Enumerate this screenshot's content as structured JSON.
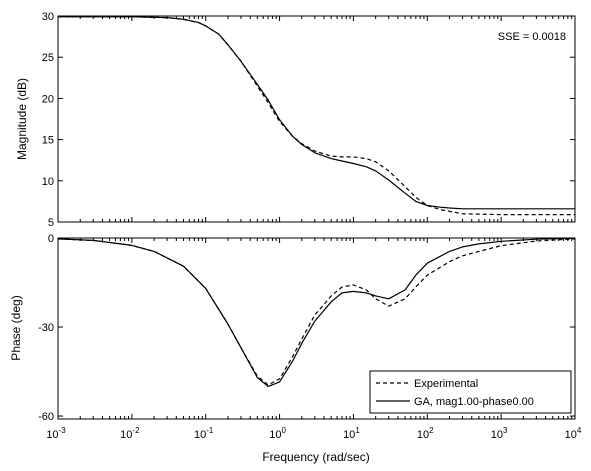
{
  "chart_data": [
    {
      "type": "line",
      "panel": "magnitude",
      "ylabel": "Magnitude (dB)",
      "xscale": "log",
      "xlim": [
        0.001,
        10000
      ],
      "ylim": [
        5,
        30
      ],
      "yticks": [
        5,
        10,
        15,
        20,
        25,
        30
      ],
      "annotation": "SSE = 0.0018",
      "series": [
        {
          "name": "Experimental",
          "style": "dashed",
          "x": [
            0.001,
            0.01,
            0.03,
            0.05,
            0.08,
            0.1,
            0.15,
            0.2,
            0.3,
            0.5,
            0.7,
            1,
            1.5,
            2,
            3,
            5,
            7,
            10,
            15,
            20,
            30,
            50,
            70,
            100,
            150,
            200,
            300,
            1000,
            10000
          ],
          "values": [
            29.9,
            29.9,
            29.8,
            29.6,
            29.2,
            28.8,
            27.8,
            26.5,
            24.5,
            21.5,
            19.5,
            17.2,
            15.4,
            14.5,
            13.6,
            13.0,
            12.9,
            12.9,
            12.7,
            12.3,
            11.2,
            9.3,
            8.0,
            7.0,
            6.5,
            6.3,
            6.0,
            5.9,
            5.9
          ]
        },
        {
          "name": "GA, mag1.00-phase0.00",
          "style": "solid",
          "x": [
            0.001,
            0.01,
            0.03,
            0.05,
            0.08,
            0.1,
            0.15,
            0.2,
            0.3,
            0.5,
            0.7,
            1,
            1.5,
            2,
            3,
            5,
            7,
            10,
            15,
            20,
            30,
            50,
            70,
            100,
            150,
            200,
            300,
            1000,
            10000
          ],
          "values": [
            29.9,
            29.9,
            29.8,
            29.6,
            29.2,
            28.8,
            27.8,
            26.5,
            24.5,
            21.7,
            19.8,
            17.4,
            15.4,
            14.4,
            13.4,
            12.7,
            12.4,
            12.1,
            11.7,
            11.2,
            10.1,
            8.5,
            7.5,
            7.0,
            6.8,
            6.7,
            6.6,
            6.6,
            6.6
          ]
        }
      ]
    },
    {
      "type": "line",
      "panel": "phase",
      "ylabel": "Phase (deg)",
      "xlabel": "Frequency (rad/sec)",
      "xscale": "log",
      "xlim": [
        0.001,
        10000
      ],
      "ylim": [
        -61,
        0
      ],
      "yticks": [
        -60,
        -30,
        0
      ],
      "xticks": [
        {
          "value": 0.001,
          "base": "10",
          "exp": "-3"
        },
        {
          "value": 0.01,
          "base": "10",
          "exp": "-2"
        },
        {
          "value": 0.1,
          "base": "10",
          "exp": "-1"
        },
        {
          "value": 1,
          "base": "10",
          "exp": "0"
        },
        {
          "value": 10,
          "base": "10",
          "exp": "1"
        },
        {
          "value": 100,
          "base": "10",
          "exp": "2"
        },
        {
          "value": 1000,
          "base": "10",
          "exp": "3"
        },
        {
          "value": 10000,
          "base": "10",
          "exp": "4"
        }
      ],
      "legend": "bottom-right",
      "series": [
        {
          "name": "Experimental",
          "style": "dashed",
          "x": [
            0.001,
            0.003,
            0.01,
            0.02,
            0.05,
            0.1,
            0.2,
            0.3,
            0.5,
            0.7,
            1,
            1.5,
            2,
            3,
            5,
            7,
            10,
            15,
            20,
            30,
            50,
            70,
            100,
            200,
            300,
            500,
            1000,
            3000,
            10000
          ],
          "values": [
            -0.3,
            -0.8,
            -2.5,
            -4.5,
            -9.5,
            -17,
            -29,
            -37,
            -46.5,
            -49.5,
            -47.5,
            -40,
            -34,
            -26,
            -19.5,
            -16.5,
            -15.8,
            -17.5,
            -20.5,
            -23,
            -20.5,
            -16.5,
            -12.5,
            -8,
            -6,
            -4.5,
            -2.6,
            -1,
            -0.3
          ]
        },
        {
          "name": "GA, mag1.00-phase0.00",
          "style": "solid",
          "x": [
            0.001,
            0.003,
            0.01,
            0.02,
            0.05,
            0.1,
            0.2,
            0.3,
            0.5,
            0.7,
            1,
            1.5,
            2,
            3,
            5,
            7,
            10,
            15,
            20,
            30,
            50,
            70,
            100,
            200,
            300,
            500,
            1000,
            3000,
            10000
          ],
          "values": [
            -0.3,
            -0.8,
            -2.5,
            -4.5,
            -9.5,
            -17,
            -29,
            -37,
            -47,
            -50,
            -48.5,
            -41.5,
            -35.5,
            -28,
            -21.5,
            -18.5,
            -18,
            -18.5,
            -19.5,
            -20.5,
            -17.5,
            -12.5,
            -8.5,
            -4.5,
            -3,
            -2,
            -1.1,
            -0.4,
            -0.1
          ]
        }
      ]
    }
  ]
}
